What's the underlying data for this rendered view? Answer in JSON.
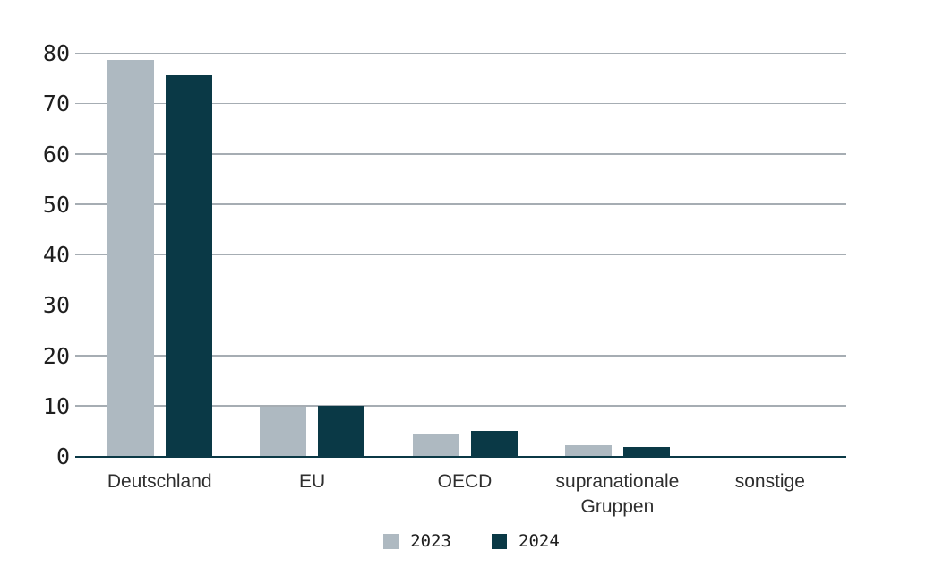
{
  "chart_data": {
    "type": "bar",
    "title": "",
    "categories": [
      "Deutschland",
      "EU",
      "OECD",
      "supranationale Gruppen",
      "sonstige"
    ],
    "series": [
      {
        "name": "2023",
        "color": "#AEB9C1",
        "values": [
          78.8,
          10.0,
          4.5,
          2.3,
          0
        ]
      },
      {
        "name": "2024",
        "color": "#0A3946",
        "values": [
          75.8,
          10.2,
          5.2,
          2.0,
          0
        ]
      }
    ],
    "xlabel": "",
    "ylabel": "",
    "ylim": [
      0,
      80
    ],
    "yticks": [
      0,
      10,
      20,
      30,
      40,
      50,
      60,
      70,
      80
    ],
    "grid": "horizontal",
    "legend_position": "bottom"
  },
  "style": {
    "background": "#FFFFFF",
    "gridline_color": "#A6ADB3",
    "axis_color": "#0B3946",
    "tick_label_color": "#1F1F1F",
    "category_label_color": "#2E2E2E"
  }
}
